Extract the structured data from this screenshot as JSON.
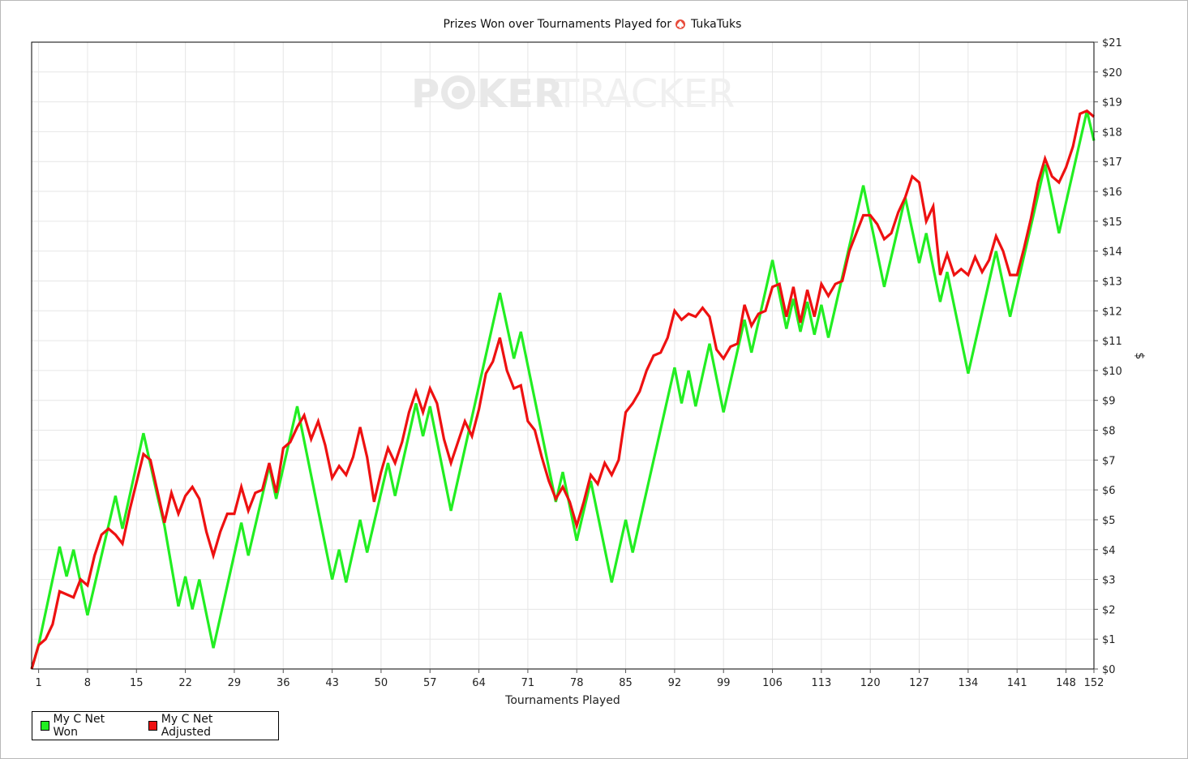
{
  "chart_data": {
    "type": "line",
    "title_prefix": "Prizes Won over Tournaments Played for",
    "title_player": "TukaTuks",
    "title_icon": "spade-icon",
    "watermark_left": "P",
    "watermark_mid": "KER",
    "watermark_right": "TRACKER",
    "xlabel": "Tournaments Played",
    "ylabel": "$",
    "xlim": [
      0,
      152
    ],
    "ylim": [
      0,
      21
    ],
    "x_ticks": [
      1,
      8,
      15,
      22,
      29,
      36,
      43,
      50,
      57,
      64,
      71,
      78,
      85,
      92,
      99,
      106,
      113,
      120,
      127,
      134,
      141,
      148,
      152
    ],
    "y_ticks": [
      "$0",
      "$1",
      "$2",
      "$3",
      "$4",
      "$5",
      "$6",
      "$7",
      "$8",
      "$9",
      "$10",
      "$11",
      "$12",
      "$13",
      "$14",
      "$15",
      "$16",
      "$17",
      "$18",
      "$19",
      "$20",
      "$21"
    ],
    "grid": true,
    "legend_position": "bottom-left",
    "colors": {
      "won": "#22ee22",
      "adjusted": "#ee1111",
      "grid": "#e6e6e6",
      "watermark": "#e8e8e8"
    },
    "series": [
      {
        "name": "My C Net Won",
        "points": [
          [
            0,
            0
          ],
          [
            1,
            0.8
          ],
          [
            4,
            4.1
          ],
          [
            5,
            3.1
          ],
          [
            6,
            4.0
          ],
          [
            8,
            1.8
          ],
          [
            12,
            5.8
          ],
          [
            13,
            4.7
          ],
          [
            16,
            7.9
          ],
          [
            18,
            5.8
          ],
          [
            19,
            4.8
          ],
          [
            21,
            2.1
          ],
          [
            22,
            3.1
          ],
          [
            23,
            2.0
          ],
          [
            24,
            3.0
          ],
          [
            26,
            0.7
          ],
          [
            30,
            4.9
          ],
          [
            31,
            3.8
          ],
          [
            34,
            6.8
          ],
          [
            35,
            5.7
          ],
          [
            38,
            8.8
          ],
          [
            43,
            3.0
          ],
          [
            44,
            4.0
          ],
          [
            45,
            2.9
          ],
          [
            47,
            5.0
          ],
          [
            48,
            3.9
          ],
          [
            51,
            6.9
          ],
          [
            52,
            5.8
          ],
          [
            55,
            8.9
          ],
          [
            56,
            7.8
          ],
          [
            57,
            8.8
          ],
          [
            60,
            5.3
          ],
          [
            67,
            12.6
          ],
          [
            69,
            10.4
          ],
          [
            70,
            11.3
          ],
          [
            75,
            5.6
          ],
          [
            76,
            6.6
          ],
          [
            78,
            4.3
          ],
          [
            80,
            6.3
          ],
          [
            83,
            2.9
          ],
          [
            85,
            5.0
          ],
          [
            86,
            3.9
          ],
          [
            92,
            10.1
          ],
          [
            93,
            8.9
          ],
          [
            94,
            10.0
          ],
          [
            95,
            8.8
          ],
          [
            97,
            10.9
          ],
          [
            99,
            8.6
          ],
          [
            102,
            11.7
          ],
          [
            103,
            10.6
          ],
          [
            106,
            13.7
          ],
          [
            108,
            11.4
          ],
          [
            109,
            12.4
          ],
          [
            110,
            11.3
          ],
          [
            111,
            12.3
          ],
          [
            112,
            11.2
          ],
          [
            113,
            12.2
          ],
          [
            114,
            11.1
          ],
          [
            119,
            16.2
          ],
          [
            122,
            12.8
          ],
          [
            125,
            15.8
          ],
          [
            127,
            13.6
          ],
          [
            128,
            14.6
          ],
          [
            130,
            12.3
          ],
          [
            131,
            13.3
          ],
          [
            134,
            9.9
          ],
          [
            138,
            14.0
          ],
          [
            140,
            11.8
          ],
          [
            145,
            16.9
          ],
          [
            147,
            14.6
          ],
          [
            151,
            18.7
          ],
          [
            152,
            17.7
          ]
        ]
      },
      {
        "name": "My C Net Adjusted",
        "points": [
          [
            0,
            0
          ],
          [
            1,
            0.8
          ],
          [
            2,
            1.0
          ],
          [
            3,
            1.5
          ],
          [
            4,
            2.6
          ],
          [
            5,
            2.5
          ],
          [
            6,
            2.4
          ],
          [
            7,
            3.0
          ],
          [
            8,
            2.8
          ],
          [
            9,
            3.8
          ],
          [
            10,
            4.5
          ],
          [
            11,
            4.7
          ],
          [
            12,
            4.5
          ],
          [
            13,
            4.2
          ],
          [
            14,
            5.3
          ],
          [
            16,
            7.2
          ],
          [
            17,
            7.0
          ],
          [
            19,
            4.9
          ],
          [
            20,
            5.9
          ],
          [
            21,
            5.2
          ],
          [
            22,
            5.8
          ],
          [
            23,
            6.1
          ],
          [
            24,
            5.7
          ],
          [
            25,
            4.6
          ],
          [
            26,
            3.8
          ],
          [
            27,
            4.6
          ],
          [
            28,
            5.2
          ],
          [
            29,
            5.2
          ],
          [
            30,
            6.1
          ],
          [
            31,
            5.3
          ],
          [
            32,
            5.9
          ],
          [
            33,
            6.0
          ],
          [
            34,
            6.9
          ],
          [
            35,
            5.9
          ],
          [
            36,
            7.4
          ],
          [
            37,
            7.6
          ],
          [
            38,
            8.1
          ],
          [
            39,
            8.5
          ],
          [
            40,
            7.7
          ],
          [
            41,
            8.3
          ],
          [
            42,
            7.5
          ],
          [
            43,
            6.4
          ],
          [
            44,
            6.8
          ],
          [
            45,
            6.5
          ],
          [
            46,
            7.1
          ],
          [
            47,
            8.1
          ],
          [
            48,
            7.1
          ],
          [
            49,
            5.6
          ],
          [
            50,
            6.6
          ],
          [
            51,
            7.4
          ],
          [
            52,
            6.9
          ],
          [
            53,
            7.6
          ],
          [
            54,
            8.6
          ],
          [
            55,
            9.3
          ],
          [
            56,
            8.6
          ],
          [
            57,
            9.4
          ],
          [
            58,
            8.9
          ],
          [
            59,
            7.7
          ],
          [
            60,
            6.9
          ],
          [
            61,
            7.6
          ],
          [
            62,
            8.3
          ],
          [
            63,
            7.8
          ],
          [
            64,
            8.7
          ],
          [
            65,
            9.9
          ],
          [
            66,
            10.3
          ],
          [
            67,
            11.1
          ],
          [
            68,
            10.0
          ],
          [
            69,
            9.4
          ],
          [
            70,
            9.5
          ],
          [
            71,
            8.3
          ],
          [
            72,
            8.0
          ],
          [
            73,
            7.1
          ],
          [
            74,
            6.3
          ],
          [
            75,
            5.7
          ],
          [
            76,
            6.1
          ],
          [
            77,
            5.6
          ],
          [
            78,
            4.8
          ],
          [
            79,
            5.6
          ],
          [
            80,
            6.5
          ],
          [
            81,
            6.2
          ],
          [
            82,
            6.9
          ],
          [
            83,
            6.5
          ],
          [
            84,
            7.0
          ],
          [
            85,
            8.6
          ],
          [
            86,
            8.9
          ],
          [
            87,
            9.3
          ],
          [
            88,
            10.0
          ],
          [
            89,
            10.5
          ],
          [
            90,
            10.6
          ],
          [
            91,
            11.1
          ],
          [
            92,
            12.0
          ],
          [
            93,
            11.7
          ],
          [
            94,
            11.9
          ],
          [
            95,
            11.8
          ],
          [
            96,
            12.1
          ],
          [
            97,
            11.8
          ],
          [
            98,
            10.7
          ],
          [
            99,
            10.4
          ],
          [
            100,
            10.8
          ],
          [
            101,
            10.9
          ],
          [
            102,
            12.2
          ],
          [
            103,
            11.5
          ],
          [
            104,
            11.9
          ],
          [
            105,
            12.0
          ],
          [
            106,
            12.8
          ],
          [
            107,
            12.9
          ],
          [
            108,
            11.8
          ],
          [
            109,
            12.8
          ],
          [
            110,
            11.6
          ],
          [
            111,
            12.7
          ],
          [
            112,
            11.8
          ],
          [
            113,
            12.9
          ],
          [
            114,
            12.5
          ],
          [
            115,
            12.9
          ],
          [
            116,
            13.0
          ],
          [
            117,
            14.0
          ],
          [
            118,
            14.6
          ],
          [
            119,
            15.2
          ],
          [
            120,
            15.2
          ],
          [
            121,
            14.9
          ],
          [
            122,
            14.4
          ],
          [
            123,
            14.6
          ],
          [
            124,
            15.3
          ],
          [
            125,
            15.8
          ],
          [
            126,
            16.5
          ],
          [
            127,
            16.3
          ],
          [
            128,
            15.0
          ],
          [
            129,
            15.5
          ],
          [
            130,
            13.2
          ],
          [
            131,
            13.9
          ],
          [
            132,
            13.2
          ],
          [
            133,
            13.4
          ],
          [
            134,
            13.2
          ],
          [
            135,
            13.8
          ],
          [
            136,
            13.3
          ],
          [
            137,
            13.7
          ],
          [
            138,
            14.5
          ],
          [
            139,
            14.0
          ],
          [
            140,
            13.2
          ],
          [
            141,
            13.2
          ],
          [
            142,
            14.1
          ],
          [
            143,
            15.1
          ],
          [
            144,
            16.3
          ],
          [
            145,
            17.1
          ],
          [
            146,
            16.5
          ],
          [
            147,
            16.3
          ],
          [
            148,
            16.8
          ],
          [
            149,
            17.5
          ],
          [
            150,
            18.6
          ],
          [
            151,
            18.7
          ],
          [
            152,
            18.5
          ]
        ]
      }
    ]
  }
}
